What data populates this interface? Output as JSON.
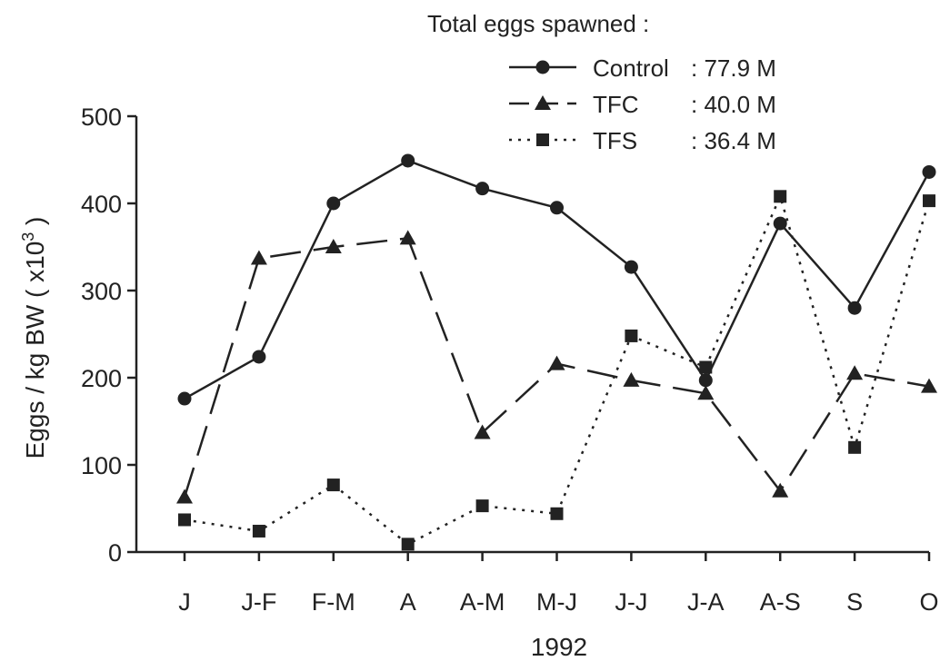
{
  "chart_data": {
    "type": "line",
    "title": "",
    "legend_title": "Total eggs spawned :",
    "xlabel": "1992",
    "ylabel": "Eggs / kg BW ( x10",
    "ylabel_sup": "3",
    "ylabel_close": " )",
    "categories": [
      "J",
      "J-F",
      "F-M",
      "A",
      "A-M",
      "M-J",
      "J-J",
      "J-A",
      "A-S",
      "S",
      "O"
    ],
    "yticks": [
      0,
      100,
      200,
      300,
      400,
      500
    ],
    "ylim": [
      0,
      500
    ],
    "grid": false,
    "legend_position": "top-right",
    "series": [
      {
        "name": "Control",
        "total": ": 77.9 M",
        "marker": "circle",
        "line": "solid",
        "values": [
          176,
          224,
          400,
          449,
          417,
          395,
          327,
          197,
          377,
          280,
          436
        ]
      },
      {
        "name": "TFC",
        "total": ": 40.0 M",
        "marker": "triangle",
        "line": "dashed",
        "values": [
          63,
          337,
          350,
          360,
          137,
          216,
          197,
          182,
          70,
          205,
          190
        ]
      },
      {
        "name": "TFS",
        "total": ": 36.4 M",
        "marker": "square",
        "line": "dotted",
        "values": [
          37,
          24,
          77,
          9,
          53,
          44,
          248,
          212,
          408,
          120,
          403
        ]
      }
    ]
  }
}
